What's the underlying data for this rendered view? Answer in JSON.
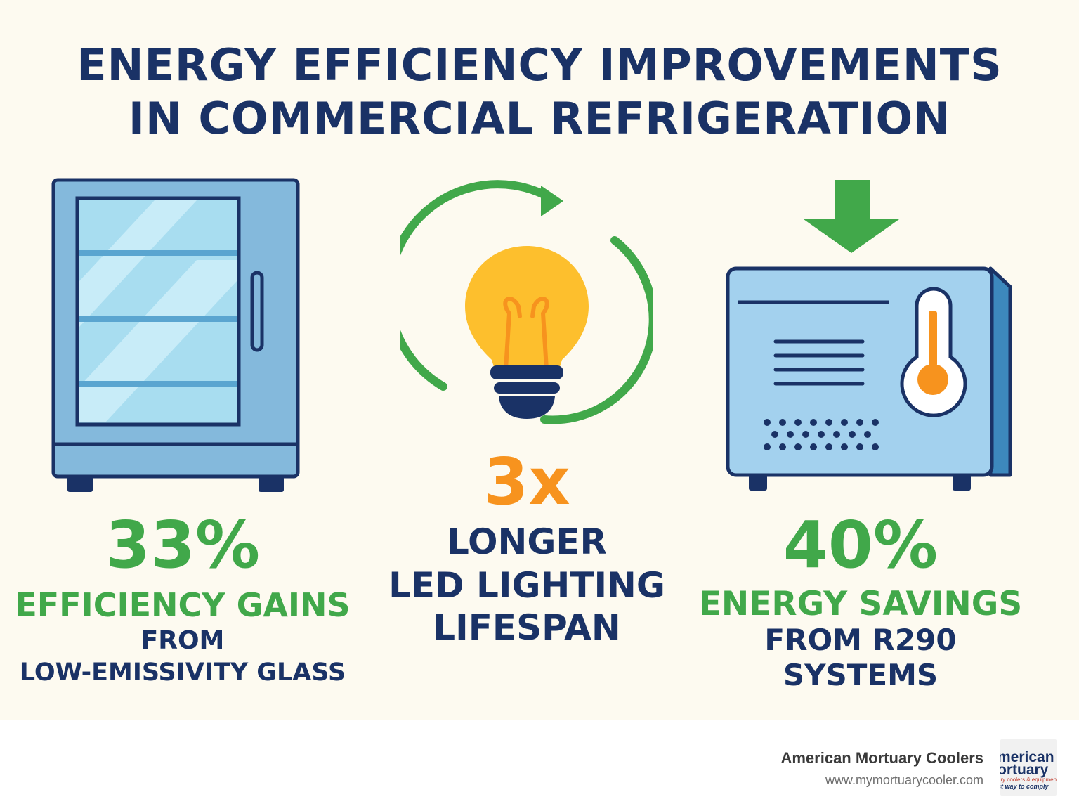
{
  "title": {
    "line1": "ENERGY EFFICIENCY IMPROVEMENTS",
    "line2": "IN COMMERCIAL REFRIGERATION"
  },
  "stats": [
    {
      "value": "33%",
      "headline": "EFFICIENCY GAINS",
      "sub1": "FROM",
      "sub2": "LOW-EMISSIVITY GLASS",
      "icon": "glass-door-fridge-icon"
    },
    {
      "value": "3x",
      "headline": "LONGER",
      "sub1": "LED LIGHTING",
      "sub2": "LIFESPAN",
      "icon": "light-bulb-cycle-icon"
    },
    {
      "value": "40%",
      "headline": "ENERGY SAVINGS",
      "sub1": "FROM R290",
      "sub2": "SYSTEMS",
      "icon": "refrigeration-unit-icon"
    }
  ],
  "footer": {
    "company": "American Mortuary Coolers",
    "url": "www.mymortuarycooler.com",
    "logo_line1": "merican",
    "logo_line2": "ortuary",
    "logo_line3": "ary coolers & equipment",
    "logo_line4": "st way to comply"
  },
  "colors": {
    "navy": "#1a3266",
    "green": "#41a84a",
    "orange": "#f7931e",
    "light_blue": "#84b9dc",
    "background": "#fdfaf0"
  }
}
